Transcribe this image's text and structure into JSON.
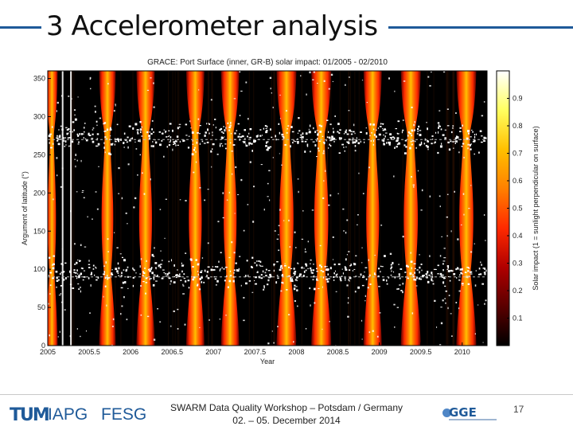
{
  "slide": {
    "title": "3   Accelerometer analysis",
    "footer": {
      "logo_tum": "TUM",
      "logo_iapg": "IAPG",
      "logo_fesg": "FESG",
      "line1": "SWARM Data Quality Workshop – Potsdam / Germany",
      "line2": "02. – 05. December 2014",
      "logo_gge": "GGE",
      "page": "17"
    }
  },
  "chart_data": {
    "type": "heatmap",
    "title": "GRACE: Port Surface (inner, GR-B) solar impact: 01/2005 - 02/2010",
    "xlabel": "Year",
    "ylabel": "Argument of latitude (°)",
    "colorbar_label": "Solar impact (1 = sunlight perpendicular on surface)",
    "xlim": [
      2005,
      2010.3
    ],
    "ylim": [
      0,
      360
    ],
    "xticks": [
      2005,
      2005.5,
      2006,
      2006.5,
      2007,
      2007.5,
      2008,
      2008.5,
      2009,
      2009.5,
      2010
    ],
    "xtick_labels": [
      "2005",
      "2005.5",
      "2006",
      "2006.5",
      "2007",
      "2007.5",
      "2008",
      "2008.5",
      "2009",
      "2009.5",
      "2010"
    ],
    "yticks": [
      0,
      50,
      100,
      150,
      200,
      250,
      300,
      350
    ],
    "colorbar_ticks": [
      0.1,
      0.2,
      0.3,
      0.4,
      0.5,
      0.6,
      0.7,
      0.8,
      0.9
    ],
    "colorbar_range": [
      0,
      1
    ],
    "colormap": [
      "#000000",
      "#5a0000",
      "#b00000",
      "#ff2a00",
      "#ff8000",
      "#ffc000",
      "#ffff60",
      "#ffffff"
    ],
    "background_color": "#000000",
    "bands": [
      {
        "center": 2005.05,
        "half_width": 0.07
      },
      {
        "center": 2005.72,
        "half_width": 0.1
      },
      {
        "center": 2006.18,
        "half_width": 0.11
      },
      {
        "center": 2006.78,
        "half_width": 0.11
      },
      {
        "center": 2007.2,
        "half_width": 0.11
      },
      {
        "center": 2007.88,
        "half_width": 0.12
      },
      {
        "center": 2008.3,
        "half_width": 0.12
      },
      {
        "center": 2008.92,
        "half_width": 0.11
      },
      {
        "center": 2009.38,
        "half_width": 0.12
      },
      {
        "center": 2010.05,
        "half_width": 0.12
      }
    ],
    "speckle_rows_deg": [
      275,
      95
    ],
    "dashed_lines_deg": [
      270,
      90
    ]
  }
}
